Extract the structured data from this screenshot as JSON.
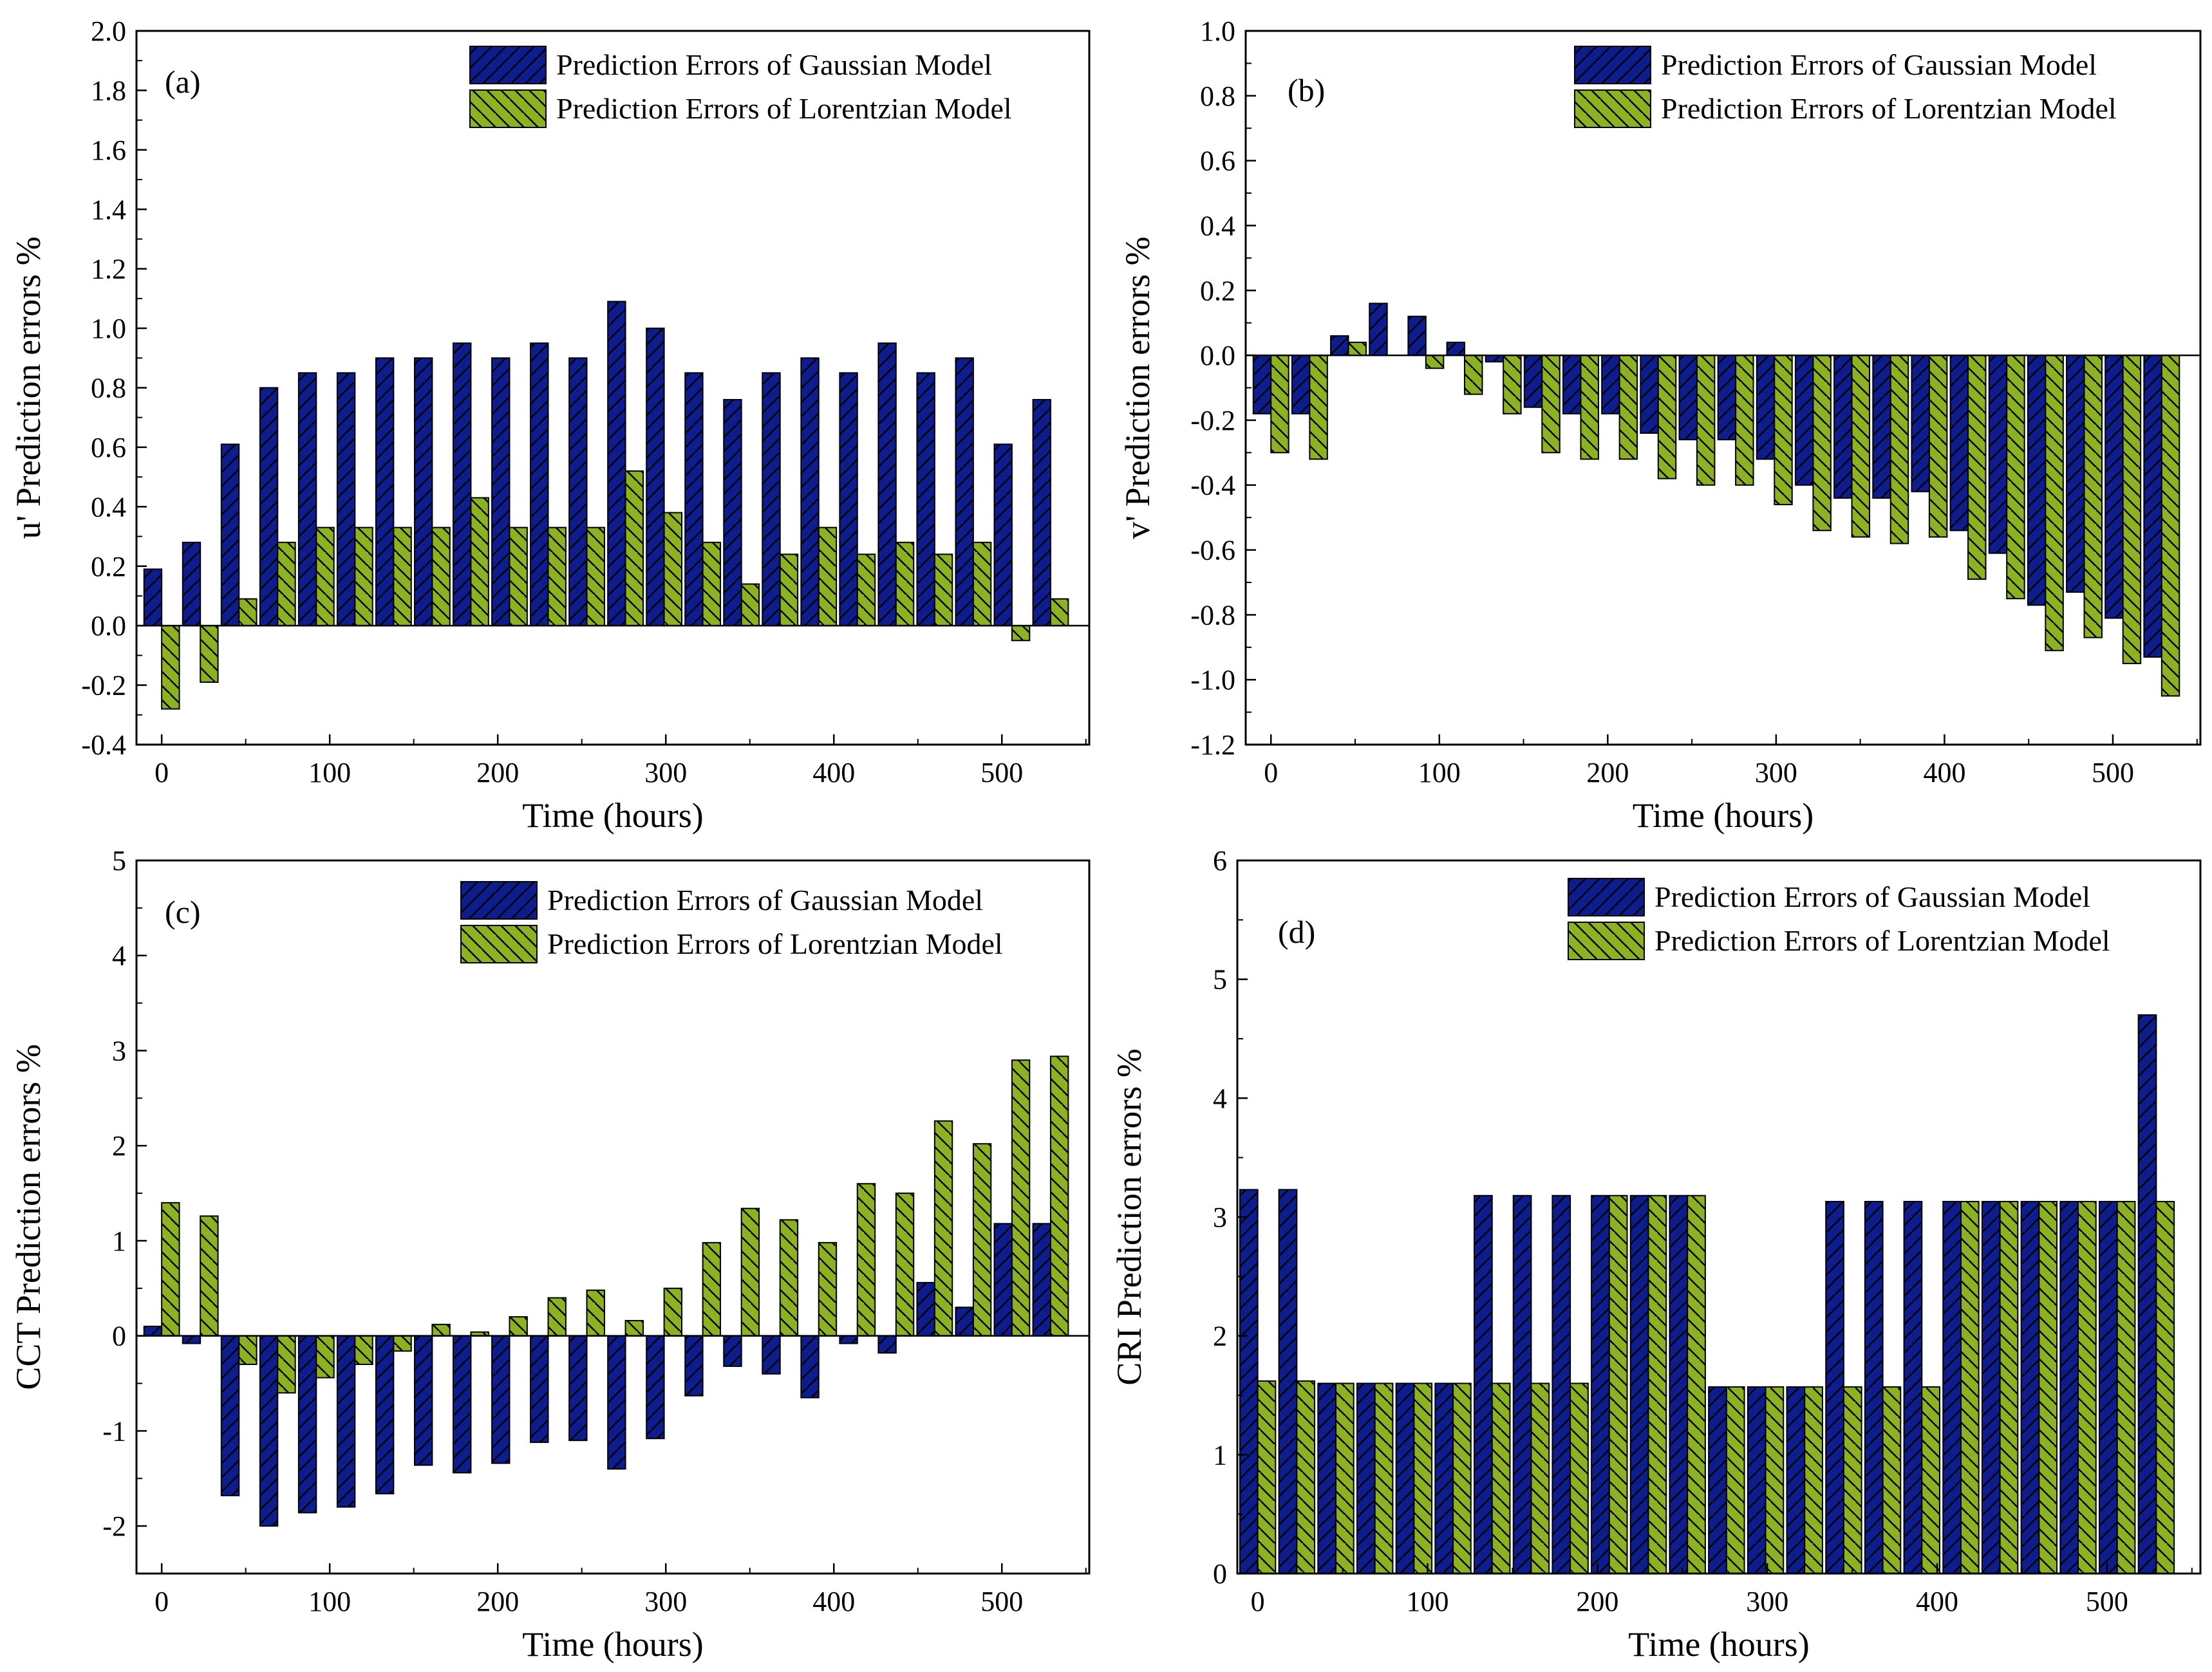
{
  "figure": {
    "series_names": [
      "Prediction Errors of Gaussian Model",
      "Prediction Errors of Lorentzian Model"
    ],
    "series_colors": [
      "#0d1d8e",
      "#8cb121"
    ],
    "hatch_color": "#000000"
  },
  "chart_data": [
    {
      "type": "bar",
      "panel": "(a)",
      "title": "",
      "xlabel": "Time (hours)",
      "ylabel": "u' Prediction errors %",
      "xlim": [
        -15,
        552
      ],
      "ylim": [
        -0.4,
        2.0
      ],
      "xticks": [
        0,
        100,
        200,
        300,
        400,
        500
      ],
      "xtick_labels": [
        "0",
        "100",
        "200",
        "300",
        "400",
        "500"
      ],
      "yticks": [
        -0.4,
        -0.2,
        0.0,
        0.2,
        0.4,
        0.6,
        0.8,
        1.0,
        1.2,
        1.4,
        1.6,
        1.8,
        2.0
      ],
      "ytick_labels": [
        "-0.4",
        "-0.2",
        "0.0",
        "0.2",
        "0.4",
        "0.6",
        "0.8",
        "1.0",
        "1.2",
        "1.4",
        "1.6",
        "1.8",
        "2.0"
      ],
      "legend": "top-right",
      "bar_width": 10.5,
      "x": [
        0,
        23,
        46,
        69,
        92,
        115,
        138,
        161,
        184,
        207,
        230,
        253,
        276,
        299,
        322,
        345,
        368,
        391,
        414,
        437,
        460,
        483,
        506,
        529
      ],
      "series": [
        {
          "name": "Prediction Errors of Gaussian Model",
          "values": [
            0.19,
            0.28,
            0.61,
            0.8,
            0.85,
            0.85,
            0.9,
            0.9,
            0.95,
            0.9,
            0.95,
            0.9,
            1.09,
            1.0,
            0.85,
            0.76,
            0.85,
            0.9,
            0.85,
            0.95,
            0.85,
            0.9,
            0.61,
            0.76
          ]
        },
        {
          "name": "Prediction Errors of Lorentzian Model",
          "values": [
            -0.28,
            -0.19,
            0.09,
            0.28,
            0.33,
            0.33,
            0.33,
            0.33,
            0.43,
            0.33,
            0.33,
            0.33,
            0.52,
            0.38,
            0.28,
            0.14,
            0.24,
            0.33,
            0.24,
            0.28,
            0.24,
            0.28,
            -0.05,
            0.09
          ]
        }
      ]
    },
    {
      "type": "bar",
      "panel": "(b)",
      "title": "",
      "xlabel": "Time (hours)",
      "ylabel": "v' Prediction errors %",
      "xlim": [
        -15,
        552
      ],
      "ylim": [
        -1.2,
        1.0
      ],
      "xticks": [
        0,
        100,
        200,
        300,
        400,
        500
      ],
      "xtick_labels": [
        "0",
        "100",
        "200",
        "300",
        "400",
        "500"
      ],
      "yticks": [
        -1.2,
        -1.0,
        -0.8,
        -0.6,
        -0.4,
        -0.2,
        0.0,
        0.2,
        0.4,
        0.6,
        0.8,
        1.0
      ],
      "ytick_labels": [
        "-1.2",
        "-1.0",
        "-0.8",
        "-0.6",
        "-0.4",
        "-0.2",
        "0.0",
        "0.2",
        "0.4",
        "0.6",
        "0.8",
        "1.0"
      ],
      "legend": "top-right",
      "bar_width": 10.5,
      "x": [
        0,
        23,
        46,
        69,
        92,
        115,
        138,
        161,
        184,
        207,
        230,
        253,
        276,
        299,
        322,
        345,
        368,
        391,
        414,
        437,
        460,
        483,
        506,
        529
      ],
      "series": [
        {
          "name": "Prediction Errors of Gaussian Model",
          "values": [
            -0.18,
            -0.18,
            0.06,
            0.16,
            0.12,
            0.04,
            -0.02,
            -0.16,
            -0.18,
            -0.18,
            -0.24,
            -0.26,
            -0.26,
            -0.32,
            -0.4,
            -0.44,
            -0.44,
            -0.42,
            -0.54,
            -0.61,
            -0.77,
            -0.73,
            -0.81,
            -0.93
          ]
        },
        {
          "name": "Prediction Errors of Lorentzian Model",
          "values": [
            -0.3,
            -0.32,
            0.04,
            0.0,
            -0.04,
            -0.12,
            -0.18,
            -0.3,
            -0.32,
            -0.32,
            -0.38,
            -0.4,
            -0.4,
            -0.46,
            -0.54,
            -0.56,
            -0.58,
            -0.56,
            -0.69,
            -0.75,
            -0.91,
            -0.87,
            -0.95,
            -1.05
          ]
        }
      ]
    },
    {
      "type": "bar",
      "panel": "(c)",
      "title": "",
      "xlabel": "Time (hours)",
      "ylabel": "CCT Prediction errors %",
      "xlim": [
        -15,
        552
      ],
      "ylim": [
        -2.5,
        5
      ],
      "xticks": [
        0,
        100,
        200,
        300,
        400,
        500
      ],
      "xtick_labels": [
        "0",
        "100",
        "200",
        "300",
        "400",
        "500"
      ],
      "yticks": [
        -2,
        -1,
        0,
        1,
        2,
        3,
        4,
        5
      ],
      "ytick_labels": [
        "-2",
        "-1",
        "0",
        "1",
        "2",
        "3",
        "4",
        "5"
      ],
      "legend": "top-right",
      "bar_width": 10.5,
      "x": [
        0,
        23,
        46,
        69,
        92,
        115,
        138,
        161,
        184,
        207,
        230,
        253,
        276,
        299,
        322,
        345,
        368,
        391,
        414,
        437,
        460,
        483,
        506,
        529
      ],
      "series": [
        {
          "name": "Prediction Errors of Gaussian Model",
          "values": [
            0.1,
            -0.08,
            -1.68,
            -2.0,
            -1.86,
            -1.8,
            -1.66,
            -1.36,
            -1.44,
            -1.34,
            -1.12,
            -1.1,
            -1.4,
            -1.08,
            -0.63,
            -0.32,
            -0.4,
            -0.65,
            -0.08,
            -0.18,
            0.56,
            0.3,
            1.18,
            1.18
          ]
        },
        {
          "name": "Prediction Errors of Lorentzian Model",
          "values": [
            1.4,
            1.26,
            -0.3,
            -0.6,
            -0.44,
            -0.3,
            -0.16,
            0.12,
            0.04,
            0.2,
            0.4,
            0.48,
            0.16,
            0.5,
            0.98,
            1.34,
            1.22,
            0.98,
            1.6,
            1.5,
            2.26,
            2.02,
            2.9,
            2.94
          ]
        }
      ]
    },
    {
      "type": "bar",
      "panel": "(d)",
      "title": "",
      "xlabel": "Time (hours)",
      "ylabel": "CRI Prediction errors %",
      "xlim": [
        -12,
        555
      ],
      "ylim": [
        0,
        6
      ],
      "xticks": [
        0,
        100,
        200,
        300,
        400,
        500
      ],
      "xtick_labels": [
        "0",
        "100",
        "200",
        "300",
        "400",
        "500"
      ],
      "yticks": [
        0,
        1,
        2,
        3,
        4,
        5,
        6
      ],
      "ytick_labels": [
        "0",
        "1",
        "2",
        "3",
        "4",
        "5",
        "6"
      ],
      "legend": "top-right",
      "bar_width": 10.5,
      "x": [
        0,
        23,
        46,
        69,
        92,
        115,
        138,
        161,
        184,
        207,
        230,
        253,
        276,
        299,
        322,
        345,
        368,
        391,
        414,
        437,
        460,
        483,
        506,
        529
      ],
      "series": [
        {
          "name": "Prediction Errors of Gaussian Model",
          "values": [
            3.23,
            3.23,
            1.6,
            1.6,
            1.6,
            1.6,
            3.18,
            3.18,
            3.18,
            3.18,
            3.18,
            3.18,
            1.57,
            1.57,
            1.57,
            3.13,
            3.13,
            3.13,
            3.13,
            3.13,
            3.13,
            3.13,
            3.13,
            4.7
          ]
        },
        {
          "name": "Prediction Errors of Lorentzian Model",
          "values": [
            1.62,
            1.62,
            1.6,
            1.6,
            1.6,
            1.6,
            1.6,
            1.6,
            1.6,
            3.18,
            3.18,
            3.18,
            1.57,
            1.57,
            1.57,
            1.57,
            1.57,
            1.57,
            3.13,
            3.13,
            3.13,
            3.13,
            3.13,
            3.13
          ]
        }
      ]
    }
  ]
}
